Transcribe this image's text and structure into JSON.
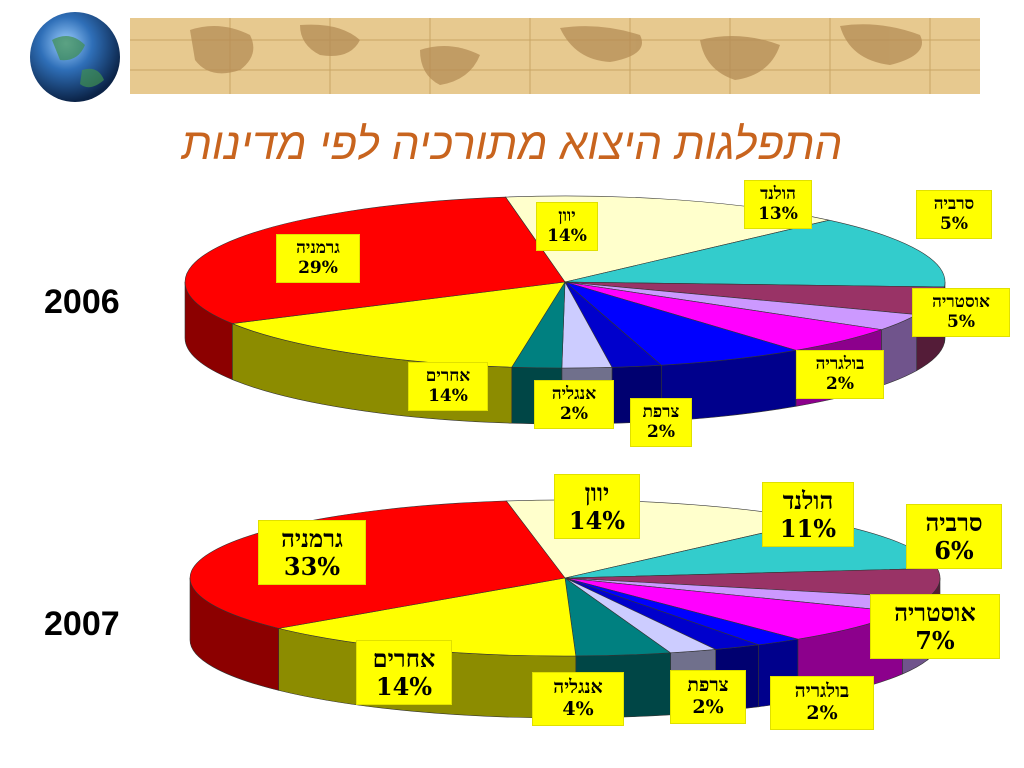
{
  "title": "התפלגות היצוא מתורכיה לפי מדינות",
  "chart_data": [
    {
      "type": "pie",
      "year": "2006",
      "slices": [
        {
          "name": "יוון",
          "value": 14,
          "color": "#ffffcc"
        },
        {
          "name": "הולנד",
          "value": 13,
          "color": "#33cccc"
        },
        {
          "name": "סרביה",
          "value": 5,
          "color": "#993366"
        },
        {
          "name": "",
          "value": 3,
          "color": "#cc99ff"
        },
        {
          "name": "אוסטריה",
          "value": 5,
          "color": "#ff00ff"
        },
        {
          "name": "",
          "value": 6,
          "color": "#0000ff"
        },
        {
          "name": "בולגריה",
          "value": 2,
          "color": "#0000cc"
        },
        {
          "name": "צרפת",
          "value": 2,
          "color": "#ccccff"
        },
        {
          "name": "אנגליה",
          "value": 2,
          "color": "#008080"
        },
        {
          "name": "אחרים",
          "value": 14,
          "color": "#ffff00"
        },
        {
          "name": "גרמניה",
          "value": 29,
          "color": "#ff0000"
        }
      ],
      "labels": [
        {
          "name": "יוון",
          "value": "14%"
        },
        {
          "name": "הולנד",
          "value": "13%"
        },
        {
          "name": "סרביה",
          "value": "5%"
        },
        {
          "name": "אוסטריה",
          "value": "5%"
        },
        {
          "name": "בולגריה",
          "value": "2%"
        },
        {
          "name": "צרפת",
          "value": "2%"
        },
        {
          "name": "אנגליה",
          "value": "2%"
        },
        {
          "name": "אחרים",
          "value": "14%"
        },
        {
          "name": "גרמניה",
          "value": "29%"
        }
      ]
    },
    {
      "type": "pie",
      "year": "2007",
      "slices": [
        {
          "name": "יוון",
          "value": 14,
          "color": "#ffffcc"
        },
        {
          "name": "הולנד",
          "value": 11,
          "color": "#33cccc"
        },
        {
          "name": "סרביה",
          "value": 6,
          "color": "#993366"
        },
        {
          "name": "",
          "value": 3,
          "color": "#cc99ff"
        },
        {
          "name": "אוסטריה",
          "value": 7,
          "color": "#ff00ff"
        },
        {
          "name": "",
          "value": 2,
          "color": "#0000ff"
        },
        {
          "name": "בולגריה",
          "value": 2,
          "color": "#0000cc"
        },
        {
          "name": "צרפת",
          "value": 2,
          "color": "#ccccff"
        },
        {
          "name": "אנגליה",
          "value": 4,
          "color": "#008080"
        },
        {
          "name": "אחרים",
          "value": 14,
          "color": "#ffff00"
        },
        {
          "name": "גרמניה",
          "value": 33,
          "color": "#ff0000"
        }
      ],
      "labels": [
        {
          "name": "יוון",
          "value": "14%"
        },
        {
          "name": "הולנד",
          "value": "11%"
        },
        {
          "name": "סרביה",
          "value": "6%"
        },
        {
          "name": "אוסטריה",
          "value": "7%"
        },
        {
          "name": "בולגריה",
          "value": "2%"
        },
        {
          "name": "צרפת",
          "value": "2%"
        },
        {
          "name": "אנגליה",
          "value": "4%"
        },
        {
          "name": "אחרים",
          "value": "14%"
        },
        {
          "name": "גרמניה",
          "value": "33%"
        }
      ]
    }
  ]
}
